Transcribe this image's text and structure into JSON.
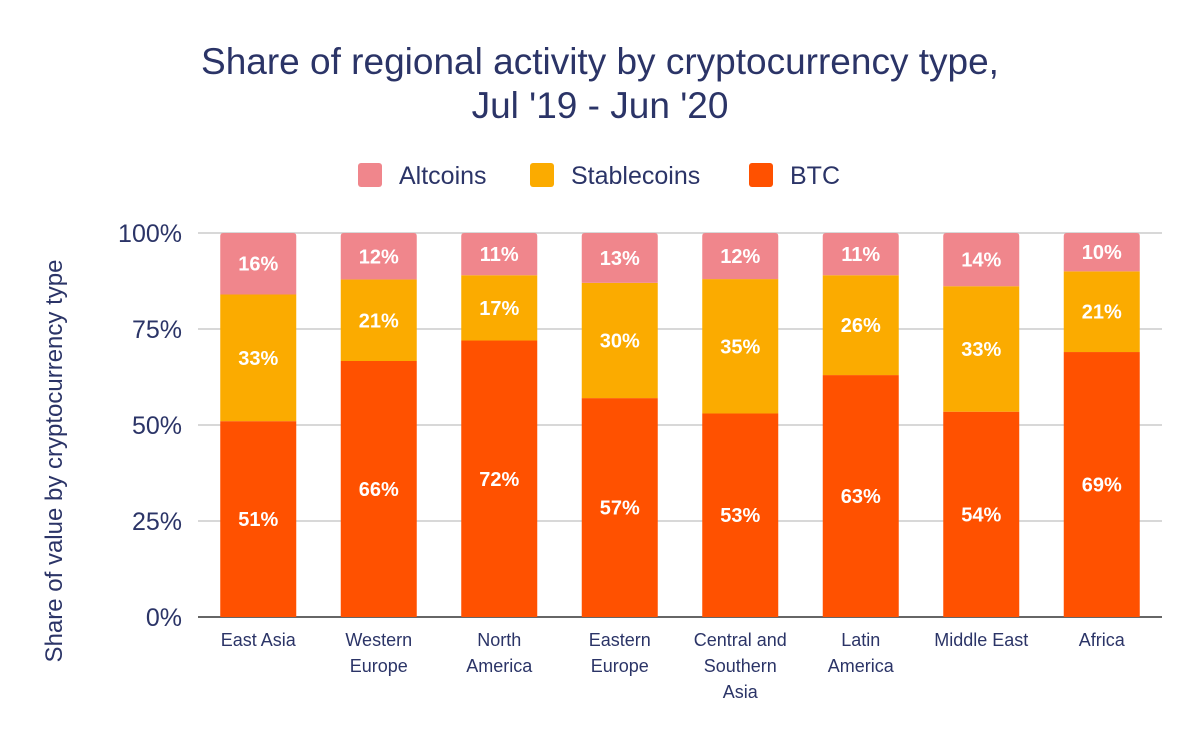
{
  "chart_data": {
    "type": "bar",
    "stacked": true,
    "title_lines": [
      "Share of regional activity by cryptocurrency type,",
      "Jul '19 - Jun '20"
    ],
    "xlabel": "",
    "ylabel": "Share of value by cryptocurrency type",
    "ylim": [
      0,
      100
    ],
    "yticks": [
      "0%",
      "25%",
      "50%",
      "75%",
      "100%"
    ],
    "grid": true,
    "legend_position": "top",
    "categories": [
      [
        "East Asia"
      ],
      [
        "Western",
        "Europe"
      ],
      [
        "North",
        "America"
      ],
      [
        "Eastern",
        "Europe"
      ],
      [
        "Central and",
        "Southern",
        "Asia"
      ],
      [
        "Latin",
        "America"
      ],
      [
        "Middle East"
      ],
      [
        "Africa"
      ]
    ],
    "series": [
      {
        "name": "BTC",
        "color": "#ff5100",
        "values": [
          51,
          66,
          72,
          57,
          53,
          63,
          54,
          69
        ]
      },
      {
        "name": "Stablecoins",
        "color": "#fbab00",
        "values": [
          33,
          21,
          17,
          30,
          35,
          26,
          33,
          21
        ]
      },
      {
        "name": "Altcoins",
        "color": "#f0868c",
        "values": [
          16,
          12,
          11,
          13,
          12,
          11,
          14,
          10
        ]
      }
    ],
    "legend_order": [
      "Altcoins",
      "Stablecoins",
      "BTC"
    ],
    "text_color": "#2b3467"
  }
}
